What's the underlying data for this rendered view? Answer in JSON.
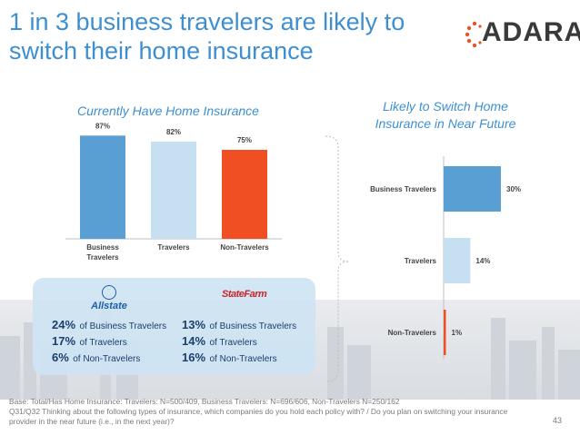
{
  "slide": {
    "title": "1 in 3 business travelers are likely to switch their home insurance",
    "logo_text": "ADARA",
    "page_number": "43",
    "footnote_base": "Base: Total/Has Home Insurance: Travelers: N=500/409, Business Travelers: N=696/606, Non-Travelers N=250/162",
    "footnote_question": "Q31/Q32 Thinking about the following types of insurance, which companies do you hold each policy with? / Do you plan on switching your insurance provider in the near future (i.e., in the next year)?"
  },
  "colors": {
    "title_blue": "#3e8fd0",
    "business_travelers": "#5a9fd4",
    "travelers": "#c6dff1",
    "non_travelers": "#f04e23",
    "logo_red": "#e8532b"
  },
  "chart_data": [
    {
      "type": "bar",
      "title": "Currently Have Home Insurance",
      "categories": [
        "Business Travelers",
        "Travelers",
        "Non-Travelers"
      ],
      "values": [
        87,
        82,
        75
      ],
      "data_labels": [
        "87%",
        "82%",
        "75%"
      ],
      "ylim": [
        0,
        100
      ],
      "grid": false,
      "legend": "none"
    },
    {
      "type": "bar",
      "orientation": "horizontal",
      "title": "Likely to Switch Home Insurance in Near Future",
      "categories": [
        "Business Travelers",
        "Travelers",
        "Non-Travelers"
      ],
      "values": [
        30,
        14,
        1
      ],
      "data_labels": [
        "30%",
        "14%",
        "1%"
      ],
      "xlim": [
        0,
        35
      ],
      "grid": false,
      "legend": "none"
    }
  ],
  "insurers": [
    {
      "icon": "allstate-logo",
      "name": "Allstate",
      "stats": [
        {
          "pct": "24%",
          "desc": "of Business Travelers"
        },
        {
          "pct": "17%",
          "desc": "of Travelers"
        },
        {
          "pct": "6%",
          "desc": "of Non-Travelers"
        }
      ]
    },
    {
      "icon": "statefarm-logo",
      "name": "StateFarm",
      "stats": [
        {
          "pct": "13%",
          "desc": "of Business Travelers"
        },
        {
          "pct": "14%",
          "desc": "of Travelers"
        },
        {
          "pct": "16%",
          "desc": "of Non-Travelers"
        }
      ]
    }
  ]
}
